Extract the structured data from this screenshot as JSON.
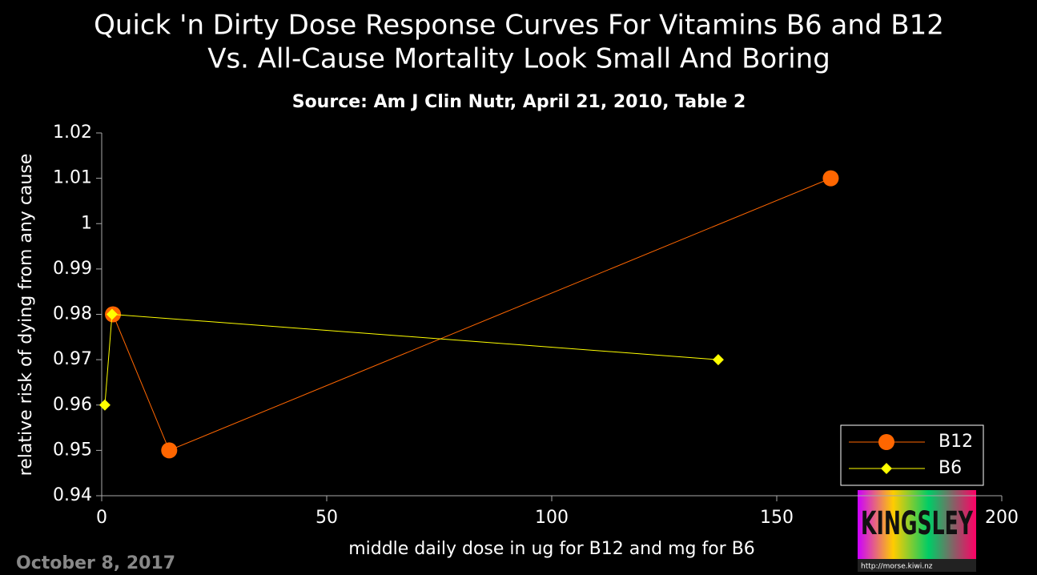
{
  "chart_data": {
    "type": "line",
    "title_lines": [
      "Quick 'n Dirty Dose Response Curves For Vitamins B6 and B12",
      "Vs. All-Cause Mortality Look Small And Boring"
    ],
    "subtitle": "Source: Am J Clin Nutr, April 21, 2010, Table 2",
    "x_label": "middle daily dose in ug for B12 and mg for B6",
    "y_label": "relative risk of dying from any cause",
    "date": "October 8, 2017",
    "logo_text": "KINGSLEY",
    "logo_url": "http://morse.kiwi.nz",
    "xlim": [
      0,
      200
    ],
    "xticks": [
      0,
      50,
      100,
      150,
      200
    ],
    "ylim": [
      0.94,
      1.02
    ],
    "yticks": [
      0.94,
      0.95,
      0.96,
      0.97,
      0.98,
      0.99,
      1,
      1.01,
      1.02
    ],
    "legend": "lower right",
    "series": [
      {
        "name": "B12",
        "color": "#ff6600",
        "marker": "circle",
        "x": [
          2.5,
          15,
          162
        ],
        "values": [
          0.98,
          0.95,
          1.01
        ]
      },
      {
        "name": "B6",
        "color": "#ffff00",
        "marker": "diamond",
        "x": [
          0.7,
          2.3,
          137
        ],
        "values": [
          0.96,
          0.98,
          0.97
        ]
      }
    ]
  }
}
